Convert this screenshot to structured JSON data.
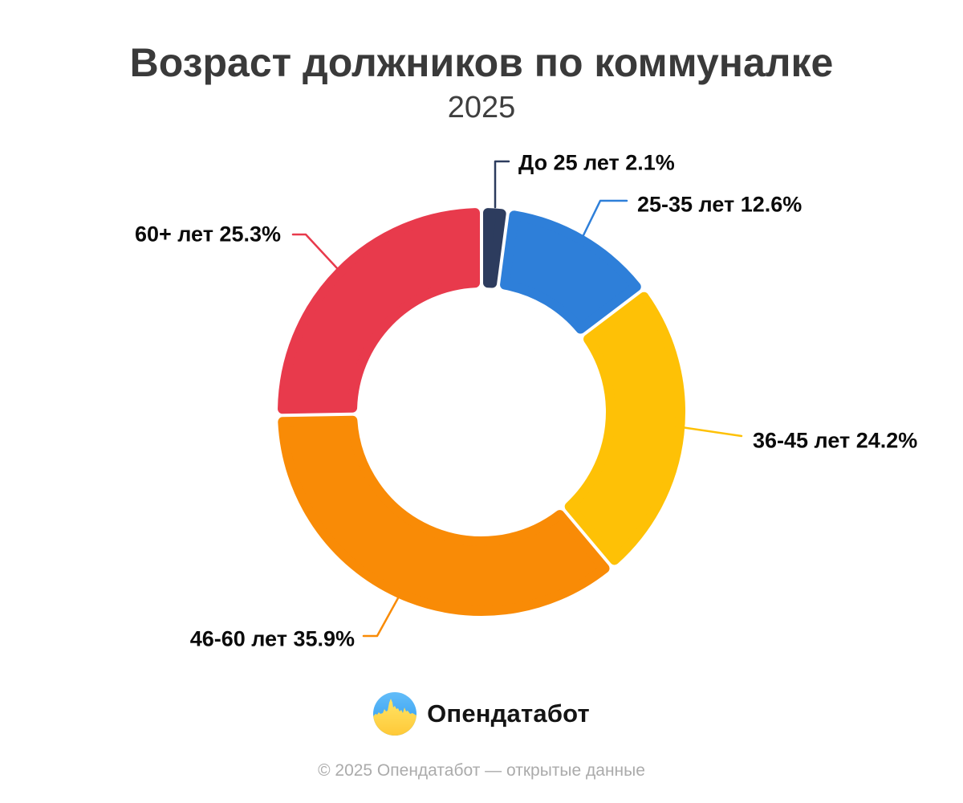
{
  "title": "Возраст должников по коммуналке",
  "subtitle": "2025",
  "chart_data": {
    "type": "pie",
    "donut": true,
    "title": "Возраст должников по коммуналке",
    "subtitle": "2025",
    "unit": "%",
    "categories": [
      "До 25 лет",
      "25-35 лет",
      "36-45 лет",
      "46-60 лет",
      "60+ лет"
    ],
    "values": [
      2.1,
      12.6,
      24.2,
      35.9,
      25.3
    ],
    "colors": [
      "#2d3c5e",
      "#2e7fd9",
      "#fec106",
      "#f98b06",
      "#e83a4c"
    ],
    "labels": [
      "До 25 лет 2.1%",
      "25-35 лет 12.6%",
      "36-45 лет 24.2%",
      "46-60 лет 35.9%",
      "60+ лет 25.3%"
    ],
    "start_angle_deg_from_top": 0,
    "direction": "clockwise",
    "legend": "none",
    "label_style": "callout-leader-lines"
  },
  "logo": {
    "text": "Опендатабот"
  },
  "footer": "© 2025 Опендатабот — открытые данные"
}
